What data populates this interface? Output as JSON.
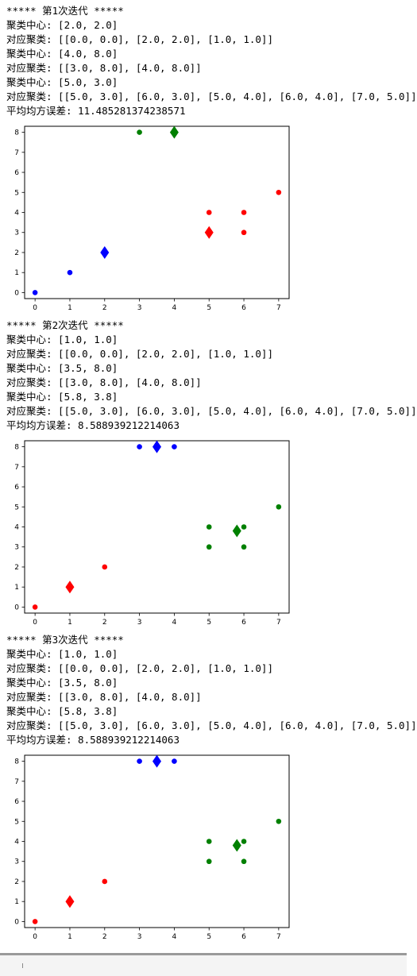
{
  "iterations": [
    {
      "header": "***** 第1次迭代 *****",
      "lines": [
        "聚类中心: [2.0, 2.0]",
        "对应聚类: [[0.0, 0.0], [2.0, 2.0], [1.0, 1.0]]",
        "聚类中心: [4.0, 8.0]",
        "对应聚类: [[3.0, 8.0], [4.0, 8.0]]",
        "聚类中心: [5.0, 3.0]",
        "对应聚类: [[5.0, 3.0], [6.0, 3.0], [5.0, 4.0], [6.0, 4.0], [7.0, 5.0]]",
        "平均均方误差: 11.485281374238571"
      ],
      "chart_data": {
        "type": "scatter",
        "xlim": [
          -0.3,
          7.3
        ],
        "ylim": [
          -0.3,
          8.3
        ],
        "xticks": [
          0,
          1,
          2,
          3,
          4,
          5,
          6,
          7
        ],
        "yticks": [
          0,
          1,
          2,
          3,
          4,
          5,
          6,
          7,
          8
        ],
        "clusters": [
          {
            "color": "#0000ff",
            "center": [
              2.0,
              2.0
            ],
            "points": [
              [
                0,
                0
              ],
              [
                2,
                2
              ],
              [
                1,
                1
              ]
            ]
          },
          {
            "color": "#008000",
            "center": [
              4.0,
              8.0
            ],
            "points": [
              [
                3,
                8
              ],
              [
                4,
                8
              ]
            ]
          },
          {
            "color": "#ff0000",
            "center": [
              5.0,
              3.0
            ],
            "points": [
              [
                5,
                3
              ],
              [
                6,
                3
              ],
              [
                5,
                4
              ],
              [
                6,
                4
              ],
              [
                7,
                5
              ]
            ]
          }
        ]
      }
    },
    {
      "header": "***** 第2次迭代 *****",
      "lines": [
        "聚类中心: [1.0, 1.0]",
        "对应聚类: [[0.0, 0.0], [2.0, 2.0], [1.0, 1.0]]",
        "聚类中心: [3.5, 8.0]",
        "对应聚类: [[3.0, 8.0], [4.0, 8.0]]",
        "聚类中心: [5.8, 3.8]",
        "对应聚类: [[5.0, 3.0], [6.0, 3.0], [5.0, 4.0], [6.0, 4.0], [7.0, 5.0]]",
        "平均均方误差: 8.588939212214063"
      ],
      "chart_data": {
        "type": "scatter",
        "xlim": [
          -0.3,
          7.3
        ],
        "ylim": [
          -0.3,
          8.3
        ],
        "xticks": [
          0,
          1,
          2,
          3,
          4,
          5,
          6,
          7
        ],
        "yticks": [
          0,
          1,
          2,
          3,
          4,
          5,
          6,
          7,
          8
        ],
        "clusters": [
          {
            "color": "#ff0000",
            "center": [
              1.0,
              1.0
            ],
            "points": [
              [
                0,
                0
              ],
              [
                2,
                2
              ],
              [
                1,
                1
              ]
            ]
          },
          {
            "color": "#0000ff",
            "center": [
              3.5,
              8.0
            ],
            "points": [
              [
                3,
                8
              ],
              [
                4,
                8
              ]
            ]
          },
          {
            "color": "#008000",
            "center": [
              5.8,
              3.8
            ],
            "points": [
              [
                5,
                3
              ],
              [
                6,
                3
              ],
              [
                5,
                4
              ],
              [
                6,
                4
              ],
              [
                7,
                5
              ]
            ]
          }
        ]
      }
    },
    {
      "header": "***** 第3次迭代 *****",
      "lines": [
        "聚类中心: [1.0, 1.0]",
        "对应聚类: [[0.0, 0.0], [2.0, 2.0], [1.0, 1.0]]",
        "聚类中心: [3.5, 8.0]",
        "对应聚类: [[3.0, 8.0], [4.0, 8.0]]",
        "聚类中心: [5.8, 3.8]",
        "对应聚类: [[5.0, 3.0], [6.0, 3.0], [5.0, 4.0], [6.0, 4.0], [7.0, 5.0]]",
        "平均均方误差: 8.588939212214063"
      ],
      "chart_data": {
        "type": "scatter",
        "xlim": [
          -0.3,
          7.3
        ],
        "ylim": [
          -0.3,
          8.3
        ],
        "xticks": [
          0,
          1,
          2,
          3,
          4,
          5,
          6,
          7
        ],
        "yticks": [
          0,
          1,
          2,
          3,
          4,
          5,
          6,
          7,
          8
        ],
        "clusters": [
          {
            "color": "#ff0000",
            "center": [
              1.0,
              1.0
            ],
            "points": [
              [
                0,
                0
              ],
              [
                2,
                2
              ],
              [
                1,
                1
              ]
            ]
          },
          {
            "color": "#0000ff",
            "center": [
              3.5,
              8.0
            ],
            "points": [
              [
                3,
                8
              ],
              [
                4,
                8
              ]
            ]
          },
          {
            "color": "#008000",
            "center": [
              5.8,
              3.8
            ],
            "points": [
              [
                5,
                3
              ],
              [
                6,
                3
              ],
              [
                5,
                4
              ],
              [
                6,
                4
              ],
              [
                7,
                5
              ]
            ]
          }
        ]
      }
    }
  ]
}
